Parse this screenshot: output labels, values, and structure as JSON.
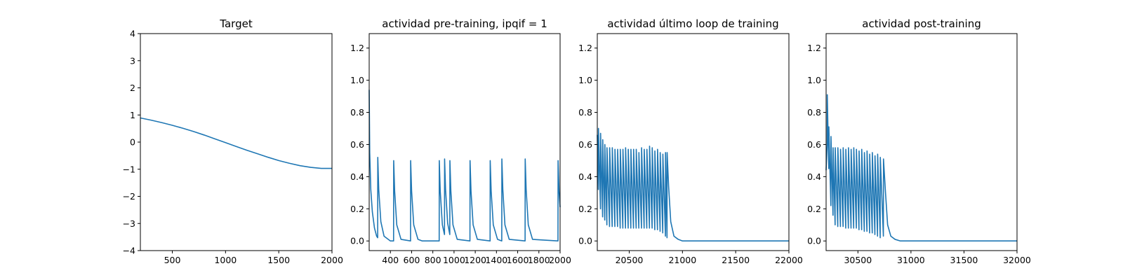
{
  "figure": {
    "background": "#ffffff",
    "line_color": "#1f77b4"
  },
  "chart_data": [
    {
      "type": "line",
      "title": "Target",
      "xlabel": "",
      "ylabel": "",
      "xlim": [
        200,
        2000
      ],
      "ylim": [
        -4,
        4
      ],
      "xticks": [
        500,
        1000,
        1500,
        2000
      ],
      "yticks": [
        -4,
        -3,
        -2,
        -1,
        0,
        1,
        2,
        3,
        4
      ],
      "grid": false,
      "series": [
        {
          "x": [
            200,
            300,
            400,
            500,
            600,
            700,
            800,
            900,
            1000,
            1100,
            1200,
            1300,
            1400,
            1500,
            1600,
            1700,
            1800,
            1900,
            2000
          ],
          "y": [
            0.89,
            0.81,
            0.72,
            0.62,
            0.51,
            0.39,
            0.26,
            0.12,
            -0.02,
            -0.16,
            -0.3,
            -0.43,
            -0.56,
            -0.68,
            -0.78,
            -0.87,
            -0.93,
            -0.97,
            -0.97
          ]
        }
      ]
    },
    {
      "type": "line",
      "title": "actividad pre-training, ipqif = 1",
      "xlabel": "",
      "ylabel": "",
      "xlim": [
        200,
        2000
      ],
      "ylim": [
        -0.06,
        1.29
      ],
      "xticks": [
        400,
        600,
        800,
        1000,
        1200,
        1400,
        1600,
        1800,
        2000
      ],
      "yticks": [
        0.0,
        0.2,
        0.4,
        0.6,
        0.8,
        1.0,
        1.2
      ],
      "grid": false,
      "series": [
        {
          "x": [
            200,
            205,
            215,
            230,
            250,
            270,
            280,
            281,
            290,
            310,
            340,
            400,
            430,
            431,
            440,
            460,
            500,
            590,
            591,
            600,
            620,
            660,
            700,
            860,
            861,
            870,
            890,
            910,
            911,
            920,
            940,
            960,
            961,
            970,
            990,
            1030,
            1150,
            1151,
            1160,
            1180,
            1220,
            1340,
            1341,
            1350,
            1370,
            1410,
            1450,
            1451,
            1460,
            1480,
            1520,
            1670,
            1671,
            1680,
            1700,
            1740,
            1980,
            1981,
            1990,
            2000
          ],
          "y": [
            0.94,
            0.55,
            0.32,
            0.18,
            0.08,
            0.03,
            0.02,
            0.52,
            0.32,
            0.12,
            0.03,
            0.0,
            0.0,
            0.5,
            0.31,
            0.1,
            0.01,
            0.0,
            0.5,
            0.31,
            0.1,
            0.01,
            0.0,
            0.0,
            0.5,
            0.31,
            0.1,
            0.04,
            0.51,
            0.32,
            0.11,
            0.04,
            0.5,
            0.31,
            0.1,
            0.01,
            0.0,
            0.5,
            0.31,
            0.1,
            0.01,
            0.0,
            0.5,
            0.31,
            0.1,
            0.01,
            0.0,
            0.51,
            0.32,
            0.1,
            0.01,
            0.0,
            0.51,
            0.32,
            0.1,
            0.01,
            0.0,
            0.5,
            0.31,
            0.21
          ]
        }
      ]
    },
    {
      "type": "line",
      "title": "actividad último loop de training",
      "xlabel": "",
      "ylabel": "",
      "xlim": [
        20200,
        22000
      ],
      "ylim": [
        -0.06,
        1.29
      ],
      "xticks": [
        20500,
        21000,
        21500,
        22000
      ],
      "yticks": [
        0.0,
        0.2,
        0.4,
        0.6,
        0.8,
        1.0,
        1.2
      ],
      "grid": false,
      "series": [
        {
          "x": [
            20200,
            20210,
            20211,
            20230,
            20231,
            20250,
            20251,
            20270,
            20271,
            20290,
            20291,
            20315,
            20316,
            20340,
            20341,
            20365,
            20366,
            20390,
            20391,
            20415,
            20416,
            20440,
            20441,
            20465,
            20466,
            20490,
            20491,
            20515,
            20516,
            20540,
            20541,
            20565,
            20566,
            20590,
            20591,
            20615,
            20616,
            20640,
            20641,
            20665,
            20666,
            20690,
            20691,
            20715,
            20716,
            20740,
            20741,
            20765,
            20766,
            20790,
            20791,
            20815,
            20816,
            20840,
            20841,
            20855,
            20856,
            20870,
            20890,
            20920,
            20960,
            21000,
            22000
          ],
          "y": [
            0.66,
            0.32,
            0.7,
            0.2,
            0.67,
            0.15,
            0.63,
            0.13,
            0.6,
            0.1,
            0.58,
            0.09,
            0.58,
            0.09,
            0.58,
            0.09,
            0.57,
            0.09,
            0.57,
            0.08,
            0.57,
            0.08,
            0.57,
            0.08,
            0.58,
            0.08,
            0.57,
            0.08,
            0.57,
            0.08,
            0.57,
            0.08,
            0.57,
            0.08,
            0.55,
            0.08,
            0.58,
            0.08,
            0.57,
            0.08,
            0.57,
            0.08,
            0.59,
            0.08,
            0.58,
            0.07,
            0.56,
            0.07,
            0.57,
            0.06,
            0.55,
            0.05,
            0.54,
            0.03,
            0.55,
            0.02,
            0.55,
            0.34,
            0.12,
            0.03,
            0.01,
            0.0,
            0.0
          ]
        }
      ]
    },
    {
      "type": "line",
      "title": "actividad post-training",
      "xlabel": "",
      "ylabel": "",
      "xlim": [
        30200,
        32000
      ],
      "ylim": [
        -0.06,
        1.29
      ],
      "xticks": [
        30500,
        31000,
        31500,
        32000
      ],
      "yticks": [
        0.0,
        0.2,
        0.4,
        0.6,
        0.8,
        1.0,
        1.2
      ],
      "grid": false,
      "series": [
        {
          "x": [
            30200,
            30210,
            30211,
            30225,
            30226,
            30245,
            30246,
            30265,
            30266,
            30285,
            30286,
            30310,
            30311,
            30335,
            30336,
            30360,
            30361,
            30385,
            30386,
            30410,
            30411,
            30435,
            30436,
            30460,
            30461,
            30485,
            30486,
            30510,
            30511,
            30535,
            30536,
            30560,
            30561,
            30585,
            30586,
            30610,
            30611,
            30635,
            30636,
            30660,
            30661,
            30685,
            30686,
            30710,
            30711,
            30740,
            30741,
            30760,
            30780,
            30810,
            30850,
            30900,
            32000
          ],
          "y": [
            0.44,
            0.6,
            0.91,
            0.45,
            0.71,
            0.22,
            0.65,
            0.16,
            0.58,
            0.1,
            0.58,
            0.09,
            0.58,
            0.09,
            0.57,
            0.09,
            0.58,
            0.08,
            0.57,
            0.08,
            0.58,
            0.08,
            0.57,
            0.08,
            0.58,
            0.08,
            0.57,
            0.07,
            0.56,
            0.07,
            0.57,
            0.06,
            0.55,
            0.06,
            0.56,
            0.05,
            0.54,
            0.05,
            0.55,
            0.04,
            0.53,
            0.03,
            0.54,
            0.02,
            0.52,
            0.03,
            0.51,
            0.3,
            0.1,
            0.03,
            0.01,
            0.0,
            0.0
          ]
        }
      ]
    }
  ]
}
